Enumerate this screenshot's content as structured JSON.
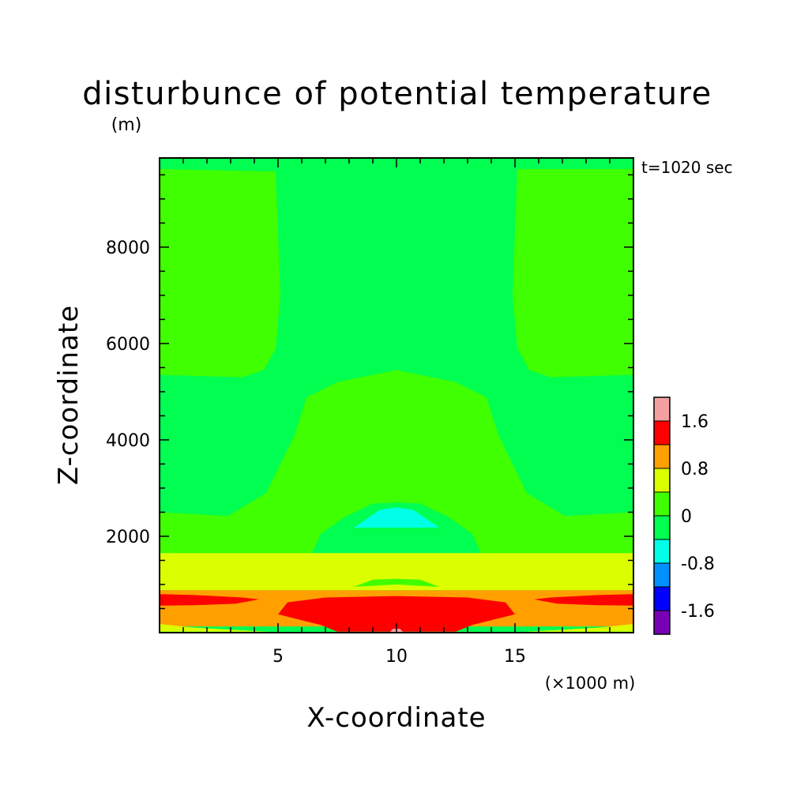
{
  "chart_data": {
    "type": "heatmap",
    "title": "disturbunce of potential temperature",
    "ylabel": "Z-coordinate",
    "yunit": "(m)",
    "xlabel": "X-coordinate",
    "xunit": "(×1000 m)",
    "time_label": "t=1020 sec",
    "xlim": [
      0,
      20
    ],
    "ylim": [
      0,
      9850
    ],
    "x_ticks": [
      5,
      10,
      15
    ],
    "y_ticks": [
      2000,
      4000,
      6000,
      8000
    ],
    "grid": false,
    "legend_position": "right",
    "colorbar": {
      "levels": [
        -2.0,
        -1.6,
        -1.2,
        -0.8,
        -0.4,
        0,
        0.4,
        0.8,
        1.2,
        1.6,
        2.0
      ],
      "tick_labels": [
        "1.6",
        "0.8",
        "0",
        "-0.8",
        "-1.6"
      ],
      "tick_values": [
        1.6,
        0.8,
        0,
        -0.8,
        -1.6
      ],
      "colors": [
        {
          "from": 1.6,
          "to": 2.0,
          "color": "#f5a0a0"
        },
        {
          "from": 1.2,
          "to": 1.6,
          "color": "#ff0000"
        },
        {
          "from": 0.8,
          "to": 1.2,
          "color": "#ffa000"
        },
        {
          "from": 0.4,
          "to": 0.8,
          "color": "#dcff00"
        },
        {
          "from": 0.0,
          "to": 0.4,
          "color": "#40ff00"
        },
        {
          "from": -0.4,
          "to": 0.0,
          "color": "#00ff50"
        },
        {
          "from": -0.8,
          "to": -0.4,
          "color": "#00ffe6"
        },
        {
          "from": -1.2,
          "to": -0.8,
          "color": "#0090ff"
        },
        {
          "from": -1.6,
          "to": -1.2,
          "color": "#0000ff"
        },
        {
          "from": -2.0,
          "to": -1.6,
          "color": "#7800b4"
        }
      ]
    },
    "regions": [
      {
        "name": "upper-left-positive",
        "value_range": [
          0,
          0.4
        ],
        "color": "#40ff00",
        "outline_xz": [
          [
            0,
            9620
          ],
          [
            4.9,
            9570
          ],
          [
            5.1,
            7000
          ],
          [
            4.9,
            5900
          ],
          [
            4.4,
            5450
          ],
          [
            3.5,
            5300
          ],
          [
            0,
            5350
          ]
        ]
      },
      {
        "name": "upper-right-positive",
        "value_range": [
          0,
          0.4
        ],
        "color": "#40ff00",
        "outline_xz": [
          [
            15.1,
            9620
          ],
          [
            20,
            9620
          ],
          [
            20,
            5350
          ],
          [
            16.5,
            5300
          ],
          [
            15.6,
            5450
          ],
          [
            15.1,
            5900
          ],
          [
            14.9,
            7000
          ]
        ]
      },
      {
        "name": "central-plume-positive",
        "value_range": [
          0,
          0.4
        ],
        "color": "#40ff00",
        "outline_xz": [
          [
            0,
            2500
          ],
          [
            2.9,
            2420
          ],
          [
            4.5,
            2900
          ],
          [
            5.7,
            4100
          ],
          [
            6.2,
            4880
          ],
          [
            7.5,
            5200
          ],
          [
            10,
            5450
          ],
          [
            12.5,
            5200
          ],
          [
            13.8,
            4880
          ],
          [
            14.3,
            4100
          ],
          [
            15.5,
            2900
          ],
          [
            17.1,
            2420
          ],
          [
            20,
            2500
          ],
          [
            20,
            1650
          ],
          [
            0,
            1650
          ]
        ]
      },
      {
        "name": "lower-negative-arc",
        "value_range": [
          -0.4,
          0
        ],
        "color": "#00ff50",
        "outline_xz": [
          [
            6.3,
            1500
          ],
          [
            6.8,
            2050
          ],
          [
            7.8,
            2400
          ],
          [
            9,
            2680
          ],
          [
            10,
            2700
          ],
          [
            11,
            2680
          ],
          [
            12.2,
            2400
          ],
          [
            13.2,
            2050
          ],
          [
            13.7,
            1500
          ],
          [
            13,
            1380
          ],
          [
            10,
            1320
          ],
          [
            7,
            1380
          ]
        ]
      },
      {
        "name": "cold-core",
        "value_range": [
          -0.8,
          -0.4
        ],
        "color": "#00ffe6",
        "outline_xz": [
          [
            8.2,
            2180
          ],
          [
            9.3,
            2550
          ],
          [
            10,
            2600
          ],
          [
            10.7,
            2550
          ],
          [
            11.8,
            2180
          ]
        ]
      },
      {
        "name": "warm-band",
        "value_range": [
          0.4,
          0.8
        ],
        "color": "#dcff00",
        "outline_xz": [
          [
            0,
            1650
          ],
          [
            20,
            1650
          ],
          [
            20,
            880
          ],
          [
            0,
            880
          ]
        ]
      },
      {
        "name": "green-island-low",
        "value_range": [
          0,
          0.4
        ],
        "color": "#40ff00",
        "outline_xz": [
          [
            8.2,
            950
          ],
          [
            9,
            1100
          ],
          [
            10,
            1120
          ],
          [
            11,
            1100
          ],
          [
            11.8,
            950
          ],
          [
            10,
            1000
          ]
        ]
      },
      {
        "name": "orange-band",
        "value_range": [
          0.8,
          1.2
        ],
        "color": "#ffa000",
        "outline_xz": [
          [
            0,
            880
          ],
          [
            20,
            880
          ],
          [
            20,
            130
          ],
          [
            0,
            130
          ]
        ]
      },
      {
        "name": "red-surface-core",
        "value_range": [
          1.2,
          1.6
        ],
        "color": "#ff0000",
        "outline_xz": [
          [
            5,
            380
          ],
          [
            5.4,
            630
          ],
          [
            7,
            730
          ],
          [
            10,
            760
          ],
          [
            13,
            730
          ],
          [
            14.6,
            630
          ],
          [
            15,
            380
          ],
          [
            13.2,
            160
          ],
          [
            12.5,
            20
          ],
          [
            7.5,
            20
          ],
          [
            6.8,
            160
          ]
        ]
      },
      {
        "name": "red-left-tongue",
        "value_range": [
          1.2,
          1.6
        ],
        "color": "#ff0000",
        "outline_xz": [
          [
            0,
            800
          ],
          [
            1.5,
            780
          ],
          [
            3.5,
            730
          ],
          [
            4.2,
            690
          ],
          [
            3.2,
            600
          ],
          [
            1.5,
            570
          ],
          [
            0,
            560
          ]
        ]
      },
      {
        "name": "red-right-tongue",
        "value_range": [
          1.2,
          1.6
        ],
        "color": "#ff0000",
        "outline_xz": [
          [
            20,
            800
          ],
          [
            18.5,
            780
          ],
          [
            16.5,
            730
          ],
          [
            15.8,
            690
          ],
          [
            16.8,
            600
          ],
          [
            18.5,
            570
          ],
          [
            20,
            560
          ]
        ]
      },
      {
        "name": "bottom-yellow-left",
        "value_range": [
          0.4,
          0.8
        ],
        "color": "#dcff00",
        "outline_xz": [
          [
            0,
            180
          ],
          [
            1.3,
            110
          ],
          [
            3,
            60
          ],
          [
            4.6,
            20
          ],
          [
            0,
            20
          ]
        ]
      },
      {
        "name": "bottom-yellow-right",
        "value_range": [
          0.4,
          0.8
        ],
        "color": "#dcff00",
        "outline_xz": [
          [
            20,
            180
          ],
          [
            18.7,
            110
          ],
          [
            17,
            60
          ],
          [
            15.4,
            20
          ],
          [
            20,
            20
          ]
        ]
      },
      {
        "name": "surface-max",
        "value_range": [
          1.6,
          2.0
        ],
        "color": "#f5a0a0",
        "outline_xz": [
          [
            9.7,
            0
          ],
          [
            9.85,
            80
          ],
          [
            10.15,
            80
          ],
          [
            10.3,
            0
          ]
        ]
      }
    ]
  }
}
